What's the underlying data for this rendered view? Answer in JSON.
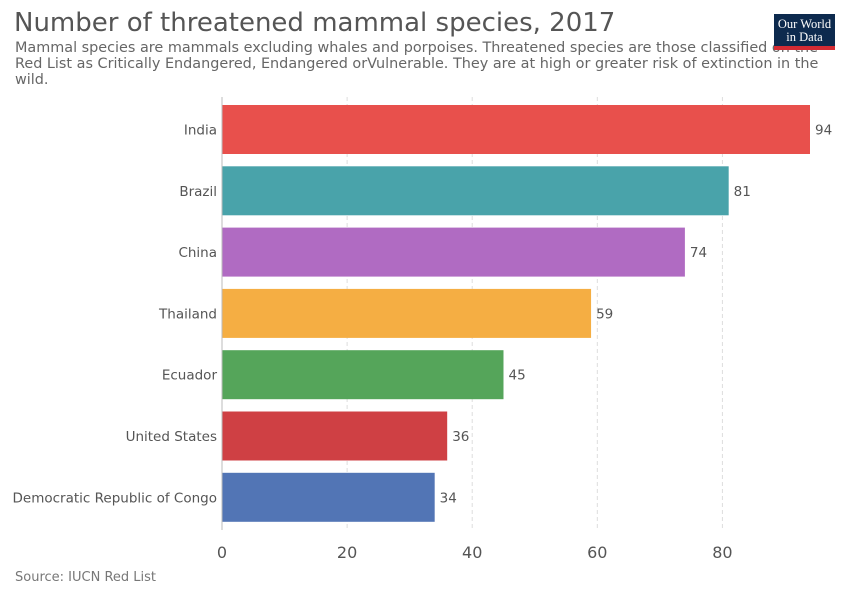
{
  "header": {
    "title": "Number of threatened mammal species, 2017",
    "subtitle": "Mammal species are mammals excluding whales and porpoises. Threatened species are those classified on the Red List as Critically Endangered, Endangered orVulnerable. They are at high or greater risk of extinction in the wild."
  },
  "logo": {
    "line1": "Our World",
    "line2": "in Data"
  },
  "footer": {
    "source": "Source: IUCN Red List"
  },
  "chart_data": {
    "type": "bar",
    "orientation": "horizontal",
    "title": "Number of threatened mammal species, 2017",
    "categories": [
      "India",
      "Brazil",
      "China",
      "Thailand",
      "Ecuador",
      "United States",
      "Democratic Republic of Congo"
    ],
    "values": [
      94,
      81,
      74,
      59,
      45,
      36,
      34
    ],
    "colors": [
      "#e8504c",
      "#49a3aa",
      "#b06bc2",
      "#f5ae43",
      "#55a55a",
      "#cf4044",
      "#5275b5"
    ],
    "xlim": [
      0,
      94
    ],
    "xticks": [
      0,
      20,
      40,
      60,
      80
    ],
    "grid": true,
    "xlabel": "",
    "ylabel": ""
  }
}
